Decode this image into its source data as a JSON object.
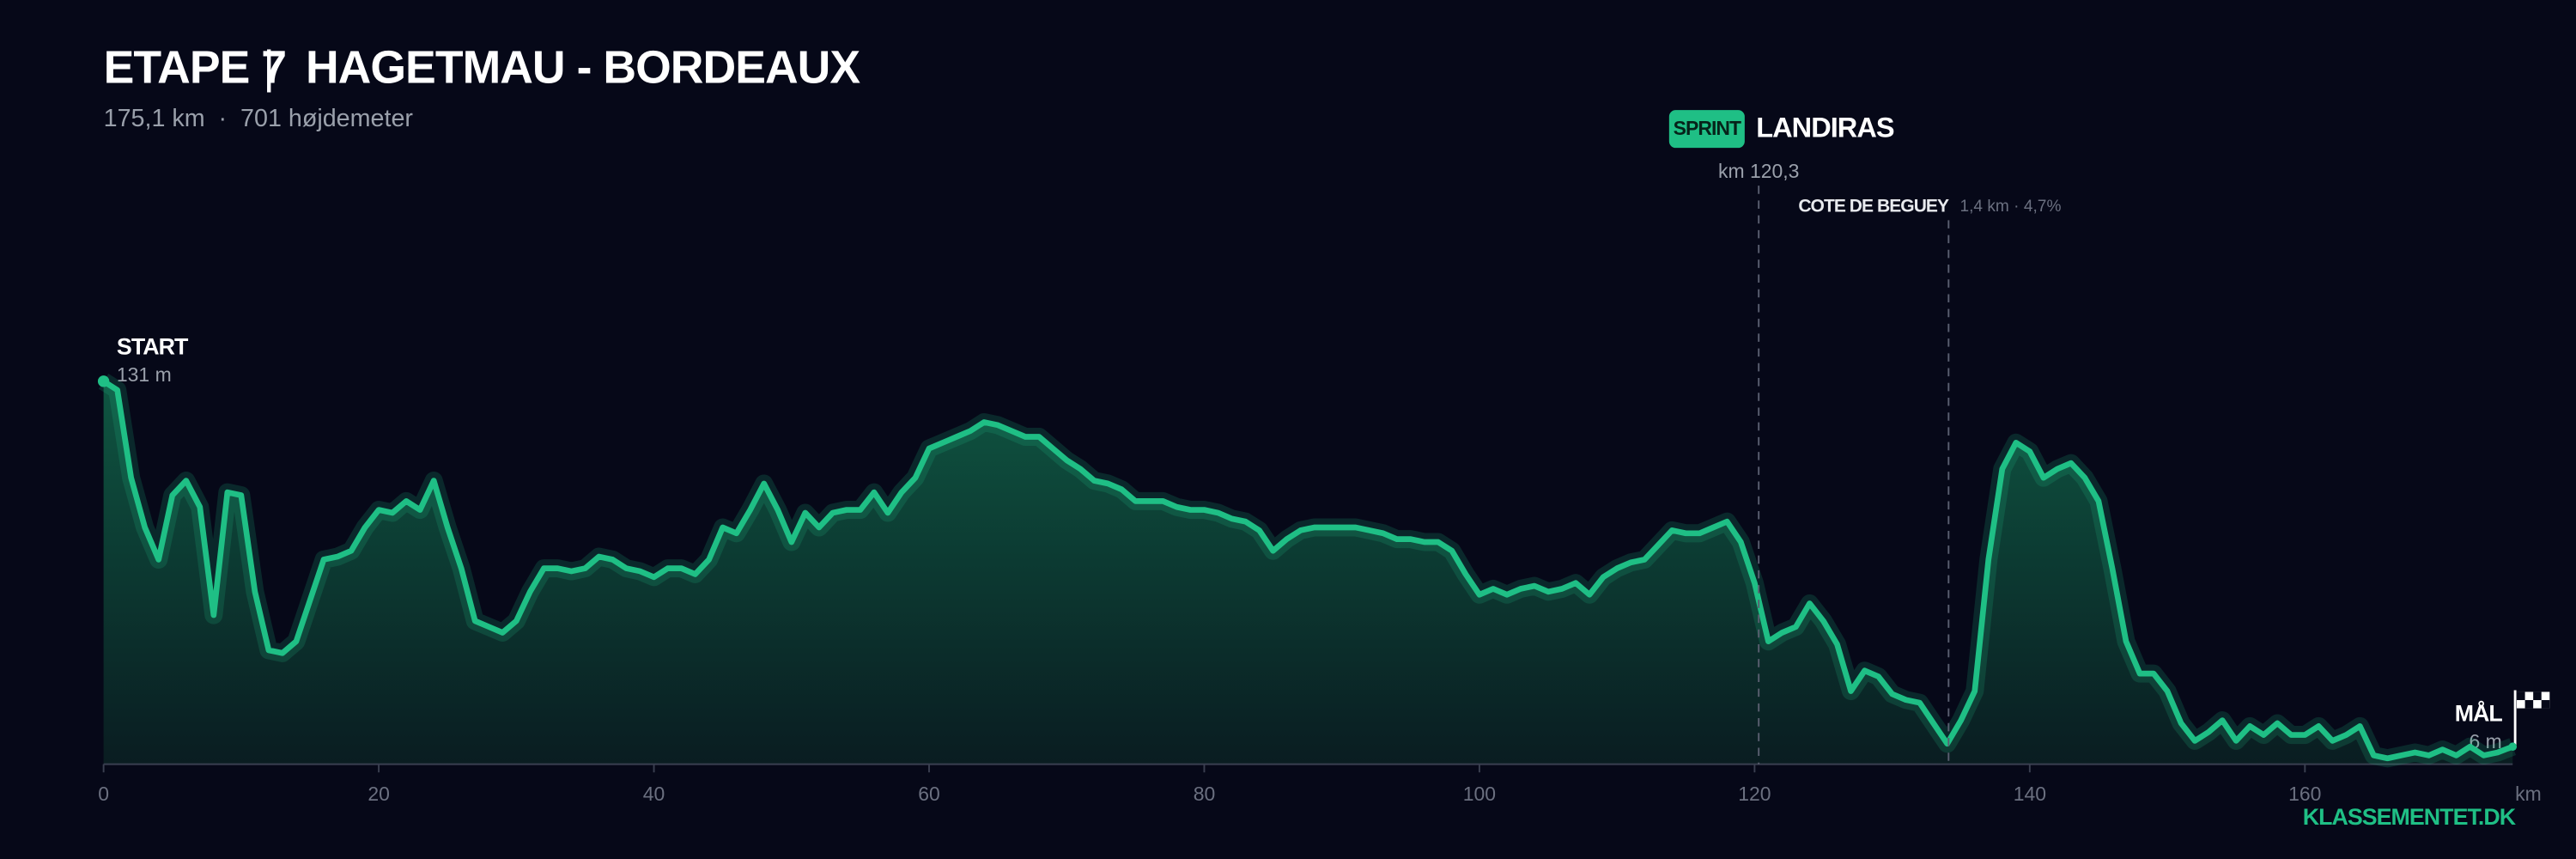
{
  "chart_data": {
    "type": "elevation",
    "title": "ETAPE 7",
    "title_separator": "|",
    "route": "HAGETMAU - BORDEAUX",
    "subtitle": "175,1 km  ·  701 højdemeter",
    "x_axis_label": "km",
    "brand": "KLASSEMENTET.DK",
    "line_color": "#1fbf85",
    "x": [
      0,
      1,
      2,
      3,
      4,
      5,
      6,
      7,
      8,
      9,
      10,
      11,
      12,
      13,
      14,
      15,
      16,
      17,
      18,
      19,
      20,
      21,
      22,
      23,
      24,
      25,
      26,
      27,
      28,
      29,
      30,
      31,
      32,
      33,
      34,
      35,
      36,
      37,
      38,
      39,
      40,
      41,
      42,
      43,
      44,
      45,
      46,
      47,
      48,
      49,
      50,
      51,
      52,
      53,
      54,
      55,
      56,
      57,
      58,
      59,
      60,
      61,
      62,
      63,
      64,
      65,
      66,
      67,
      68,
      69,
      70,
      71,
      72,
      73,
      74,
      75,
      76,
      77,
      78,
      79,
      80,
      81,
      82,
      83,
      84,
      85,
      86,
      87,
      88,
      89,
      90,
      91,
      92,
      93,
      94,
      95,
      96,
      97,
      98,
      99,
      100,
      101,
      102,
      103,
      104,
      105,
      106,
      107,
      108,
      109,
      110,
      111,
      112,
      113,
      114,
      115,
      116,
      117,
      118,
      119,
      120,
      121,
      122,
      123,
      124,
      125,
      126,
      127,
      128,
      129,
      130,
      131,
      132,
      133,
      134,
      135,
      136,
      137,
      138,
      139,
      140,
      141,
      142,
      143,
      144,
      145,
      146,
      147,
      148,
      149,
      150,
      151,
      152,
      153,
      154,
      155,
      156,
      157,
      158,
      159,
      160,
      161,
      162,
      163,
      164,
      165,
      166,
      167,
      168,
      169,
      170,
      171,
      172,
      173,
      174,
      175.1
    ],
    "values": [
      131,
      128,
      98,
      81,
      70,
      92,
      97,
      88,
      51,
      93,
      92,
      59,
      39,
      38,
      42,
      56,
      70,
      71,
      73,
      81,
      87,
      86,
      90,
      87,
      97,
      81,
      67,
      49,
      47,
      45,
      49,
      59,
      67,
      67,
      66,
      67,
      71,
      70,
      67,
      66,
      64,
      67,
      67,
      65,
      70,
      81,
      79,
      87,
      96,
      87,
      76,
      86,
      81,
      86,
      87,
      87,
      93,
      86,
      93,
      98,
      108,
      110,
      112,
      114,
      117,
      116,
      114,
      112,
      112,
      108,
      104,
      101,
      97,
      96,
      94,
      90,
      90,
      90,
      88,
      87,
      87,
      86,
      84,
      83,
      80,
      73,
      77,
      80,
      81,
      81,
      81,
      81,
      80,
      79,
      77,
      77,
      76,
      76,
      73,
      65,
      58,
      60,
      58,
      60,
      61,
      59,
      60,
      62,
      58,
      64,
      67,
      69,
      70,
      75,
      80,
      79,
      79,
      81,
      83,
      76,
      62,
      42,
      45,
      47,
      55,
      49,
      41,
      25,
      32,
      30,
      24,
      22,
      21,
      14,
      7,
      15,
      25,
      70,
      101,
      110,
      107,
      98,
      101,
      103,
      98,
      90,
      67,
      42,
      31,
      31,
      25,
      14,
      8,
      11,
      15,
      8,
      13,
      10,
      14,
      10,
      10,
      13,
      8,
      10,
      13,
      3,
      2,
      3,
      4,
      3,
      5,
      3,
      6,
      3,
      4,
      6
    ],
    "xlim": [
      0,
      175.1
    ],
    "ylim": [
      0,
      140
    ],
    "xticks": [
      0,
      20,
      40,
      60,
      80,
      100,
      120,
      140,
      160
    ],
    "start": {
      "label": "START",
      "elevation": "131 m"
    },
    "finish": {
      "label": "MÅL",
      "elevation": "6 m"
    },
    "sprint": {
      "badge": "SPRINT",
      "name": "LANDIRAS",
      "km": 120.3,
      "label": "km 120,3"
    },
    "climb": {
      "name": "COTE DE BEGUEY",
      "km": 134.1,
      "details": "1,4 km · 4,7%"
    }
  }
}
